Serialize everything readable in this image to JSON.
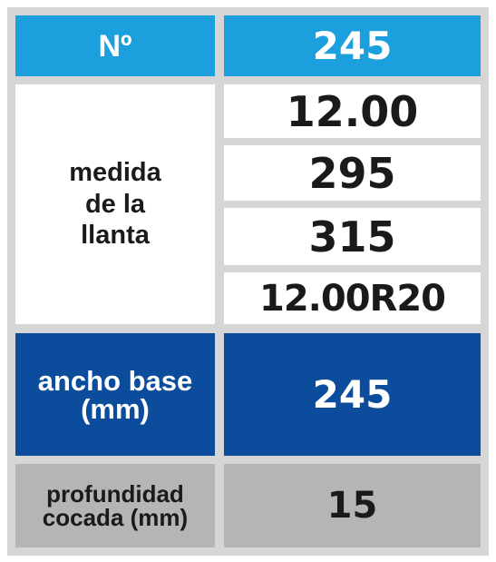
{
  "table": {
    "header": {
      "label": "Nº",
      "value": "245"
    },
    "size": {
      "label_lines": [
        "medida",
        "de la",
        "llanta"
      ],
      "values": [
        "12.00",
        "295",
        "315",
        "12.00R20"
      ]
    },
    "base_width": {
      "label_lines": [
        "ancho base",
        "(mm)"
      ],
      "value": "245"
    },
    "tread_depth": {
      "label_lines": [
        "profundidad",
        "cocada (mm)"
      ],
      "value": "15"
    }
  }
}
